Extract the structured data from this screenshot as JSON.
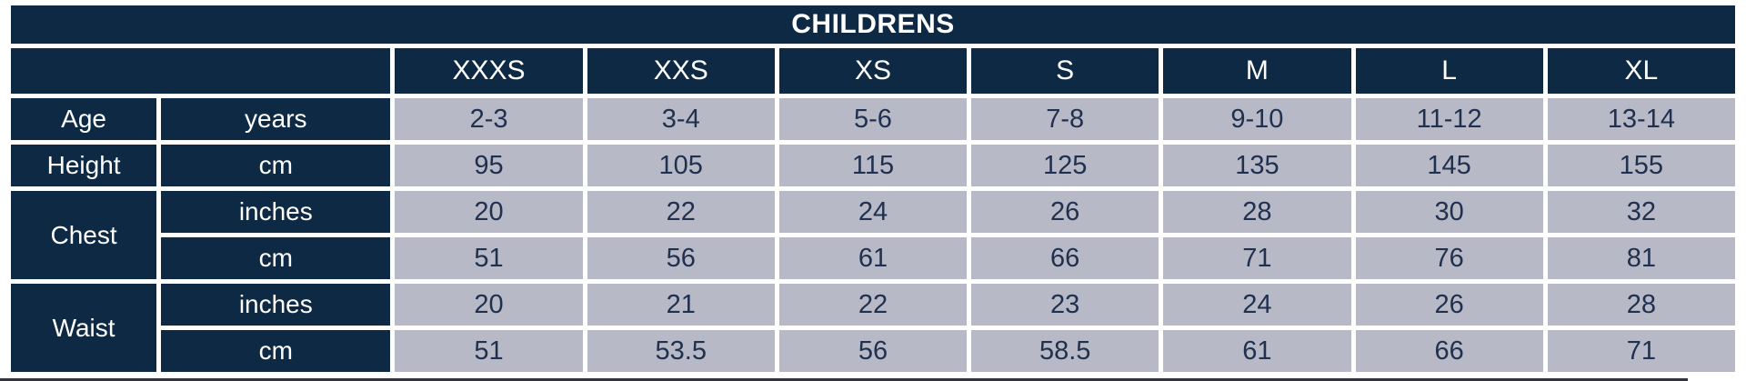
{
  "chart_data": {
    "type": "table",
    "title": "CHILDRENS",
    "sizes": [
      "XXXS",
      "XXS",
      "XS",
      "S",
      "M",
      "L",
      "XL"
    ],
    "rows": [
      {
        "label": "Age",
        "label_rowspan": 1,
        "unit": "years",
        "values": [
          "2-3",
          "3-4",
          "5-6",
          "7-8",
          "9-10",
          "11-12",
          "13-14"
        ]
      },
      {
        "label": "Height",
        "label_rowspan": 1,
        "unit": "cm",
        "values": [
          "95",
          "105",
          "115",
          "125",
          "135",
          "145",
          "155"
        ]
      },
      {
        "label": "Chest",
        "label_rowspan": 2,
        "unit": "inches",
        "values": [
          "20",
          "22",
          "24",
          "26",
          "28",
          "30",
          "32"
        ]
      },
      {
        "label": "Chest",
        "label_rowspan": 0,
        "unit": "cm",
        "values": [
          "51",
          "56",
          "61",
          "66",
          "71",
          "76",
          "81"
        ]
      },
      {
        "label": "Waist",
        "label_rowspan": 2,
        "unit": "inches",
        "values": [
          "20",
          "21",
          "22",
          "23",
          "24",
          "26",
          "28"
        ]
      },
      {
        "label": "Waist",
        "label_rowspan": 0,
        "unit": "cm",
        "values": [
          "51",
          "53.5",
          "56",
          "58.5",
          "61",
          "66",
          "71"
        ]
      }
    ],
    "layout": {
      "grid": "white gaps between cells",
      "legend": "none"
    }
  },
  "colors": {
    "navy": "#0e2944",
    "cell": "#b8b9c7",
    "value_text": "#20304f",
    "white": "#ffffff",
    "artifact": "#33333b"
  }
}
